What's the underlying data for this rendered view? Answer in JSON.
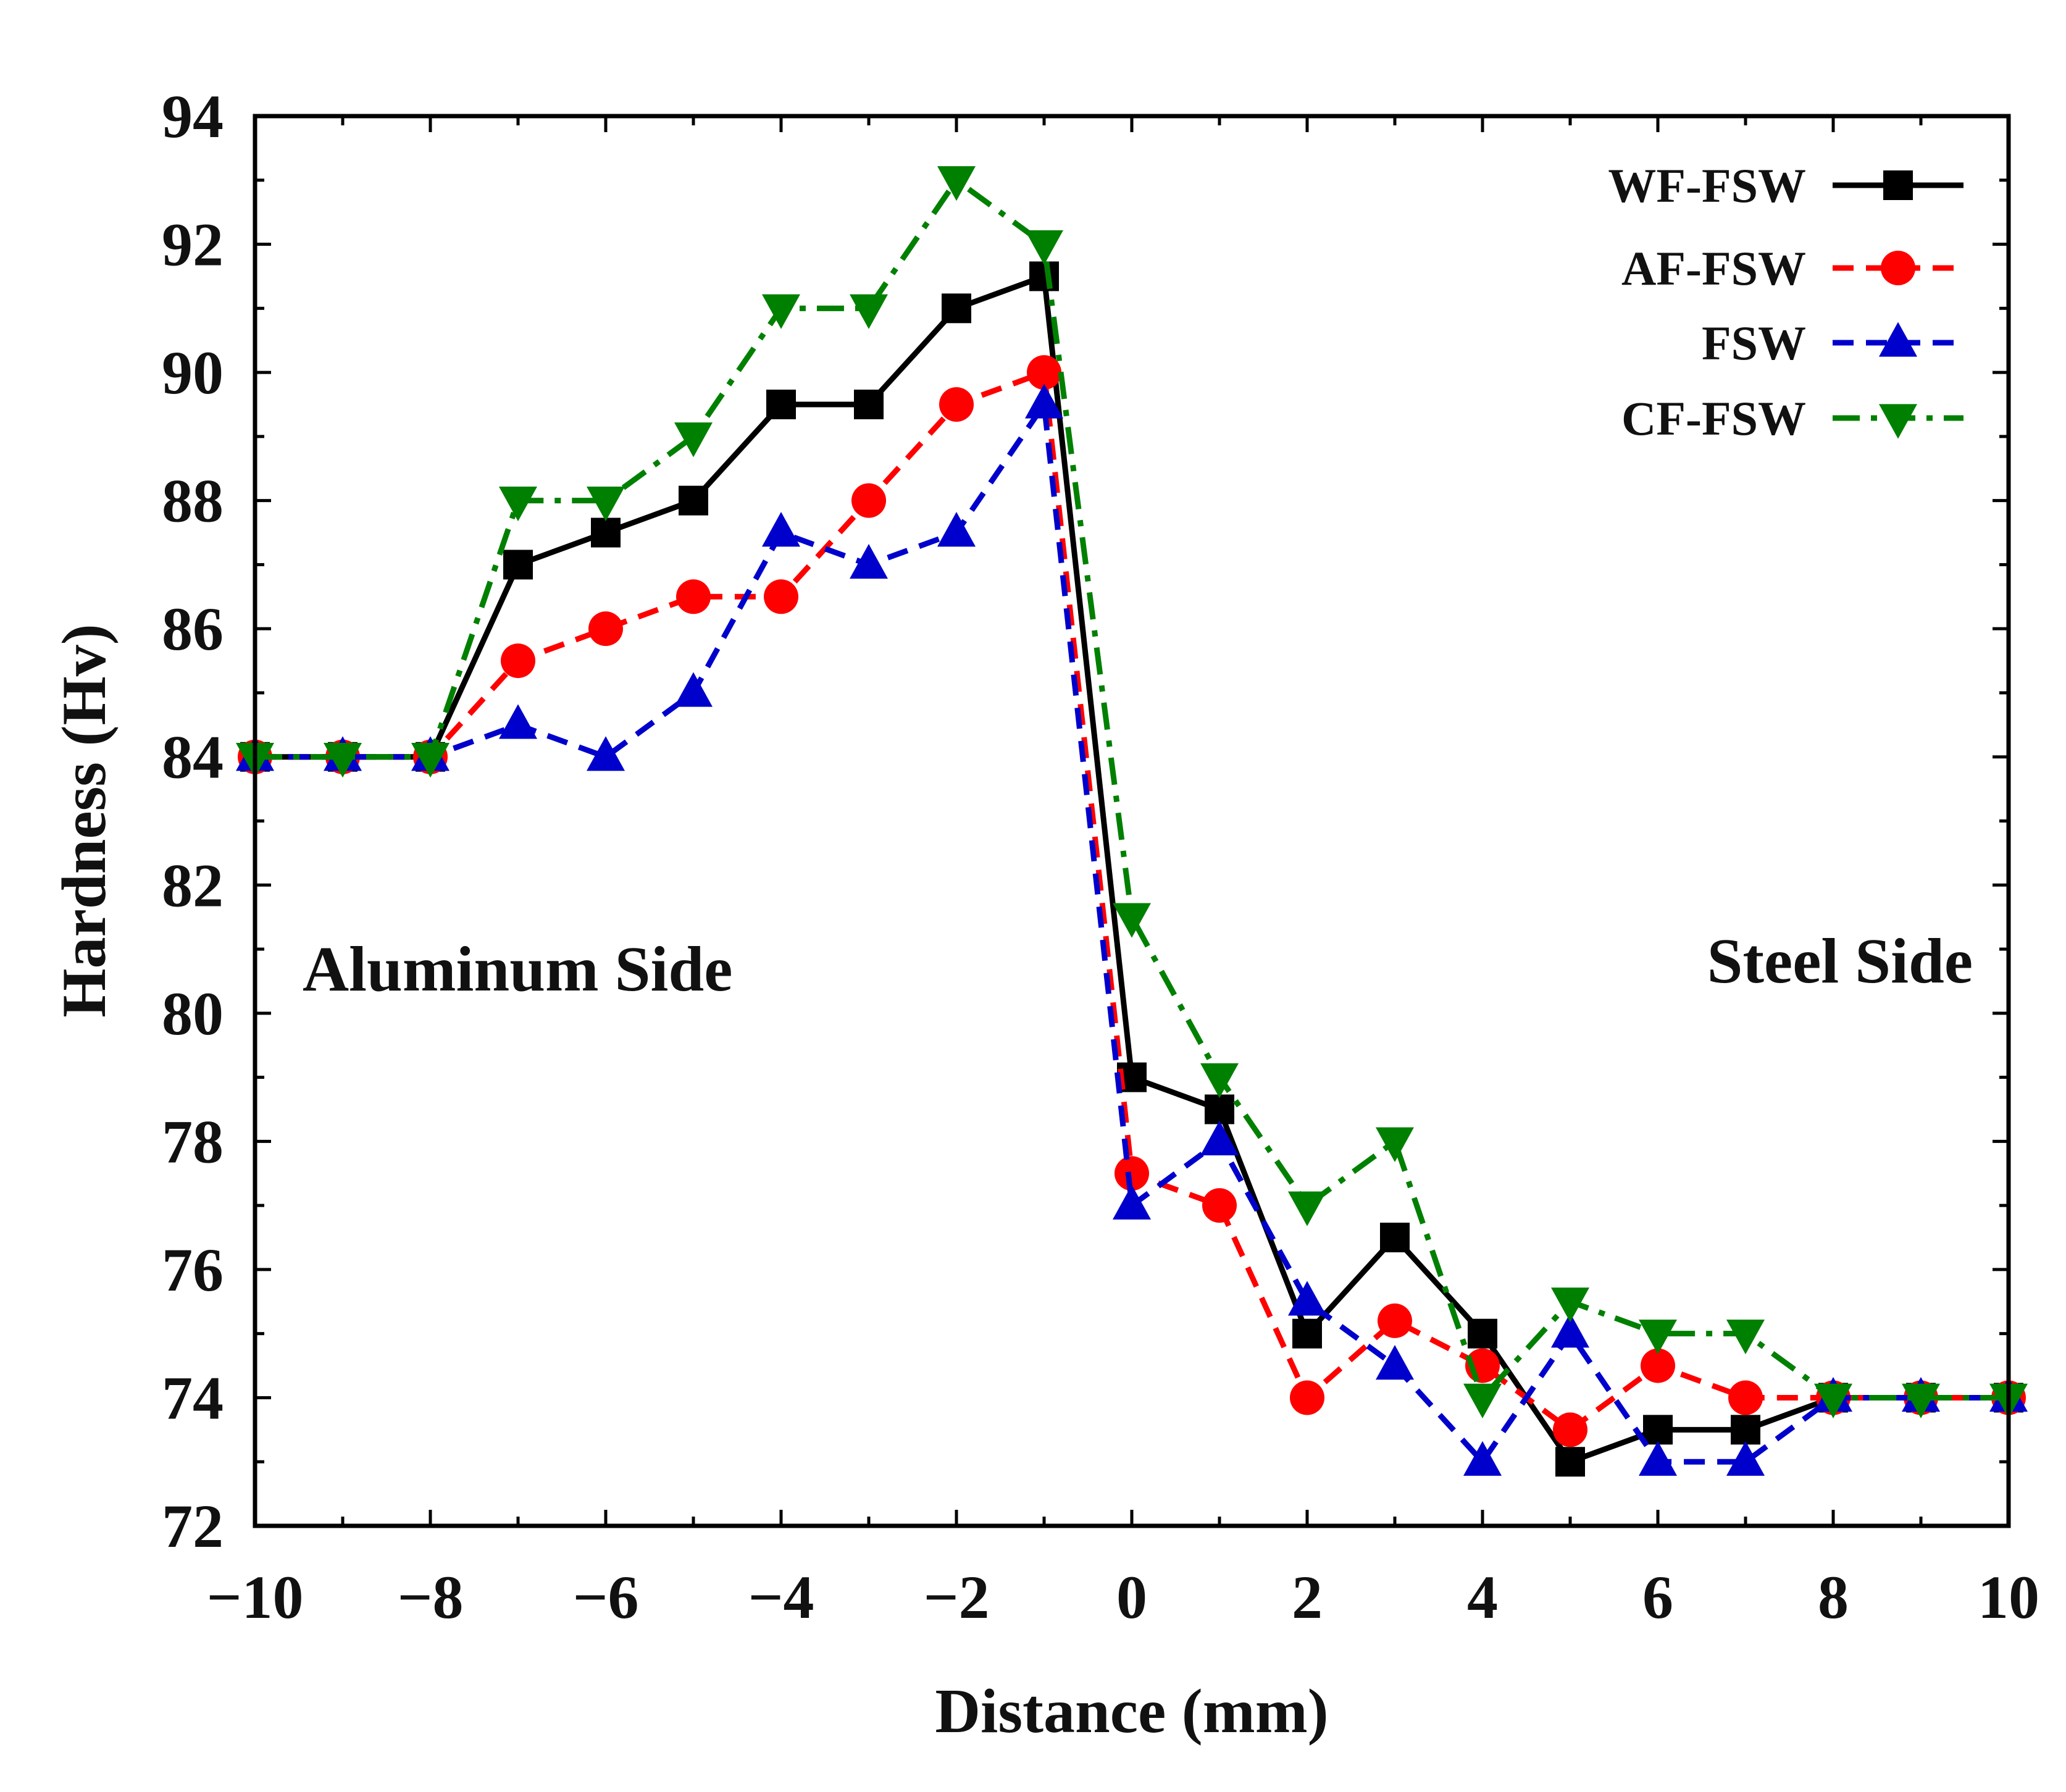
{
  "chart_data": {
    "type": "line",
    "title": "",
    "xlabel": "Distance (mm)",
    "ylabel": "Hardness (Hv)",
    "xlim": [
      -10,
      10
    ],
    "ylim": [
      72,
      94
    ],
    "xticks": [
      -10,
      -8,
      -6,
      -4,
      -2,
      0,
      2,
      4,
      6,
      8,
      10
    ],
    "xtick_labels": [
      "−10",
      "−8",
      "−6",
      "−4",
      "−2",
      "0",
      "2",
      "4",
      "6",
      "8",
      "10"
    ],
    "yticks": [
      72,
      74,
      76,
      78,
      80,
      82,
      84,
      86,
      88,
      90,
      92,
      94
    ],
    "ytick_labels": [
      "72",
      "74",
      "76",
      "78",
      "80",
      "82",
      "84",
      "86",
      "88",
      "90",
      "92",
      "94"
    ],
    "x": [
      -10,
      -9,
      -8,
      -7,
      -6,
      -5,
      -4,
      -3,
      -2,
      -1,
      0,
      1,
      2,
      3,
      4,
      5,
      6,
      7,
      8,
      9,
      10
    ],
    "legend_position": "top-right",
    "annotations": [
      {
        "text": "Aluminum Side",
        "at_x": -10,
        "at_y": 79.5
      },
      {
        "text": "Steel Side",
        "at_x": 10,
        "at_y": 79.5
      }
    ],
    "series": [
      {
        "name": "WF-FSW",
        "color": "#000000",
        "marker": "square",
        "dash": "solid",
        "values": [
          84,
          84,
          84,
          87,
          87.5,
          88,
          89.5,
          89.5,
          91,
          91.5,
          79,
          78.5,
          75,
          76.5,
          75,
          73,
          73.5,
          73.5,
          74,
          74,
          74
        ]
      },
      {
        "name": "AF-FSW",
        "color": "#ff0000",
        "marker": "circle",
        "dash": "dashed",
        "values": [
          84,
          84,
          84,
          85.5,
          86,
          86.5,
          86.5,
          88,
          89.5,
          90,
          77.5,
          77,
          74,
          75.2,
          74.5,
          73.5,
          74.5,
          74,
          74,
          74,
          74
        ]
      },
      {
        "name": "FSW",
        "color": "#0000cc",
        "marker": "triangle-up",
        "dash": "dashed",
        "values": [
          84,
          84,
          84,
          84.5,
          84,
          85,
          87.5,
          87,
          87.5,
          89.5,
          77,
          78,
          75.5,
          74.5,
          73,
          75,
          73,
          73,
          74,
          74,
          74
        ]
      },
      {
        "name": "CF-FSW",
        "color": "#008000",
        "marker": "triangle-down",
        "dash": "dashdot",
        "values": [
          84,
          84,
          84,
          88,
          88,
          89,
          91,
          91,
          93,
          92,
          81.5,
          79,
          77,
          78,
          74,
          75.5,
          75,
          75,
          74,
          74,
          74
        ]
      }
    ]
  }
}
